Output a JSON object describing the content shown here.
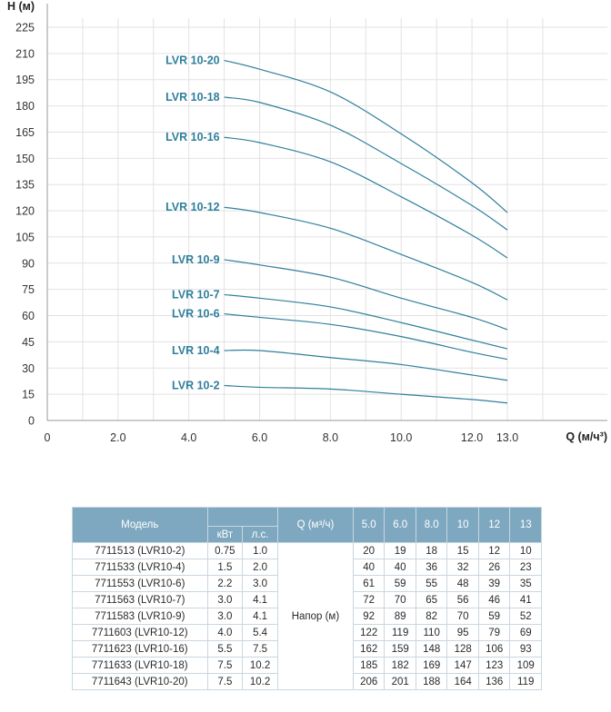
{
  "chart_data": {
    "type": "line",
    "xlabel": "Q (м/ч³)",
    "ylabel": "H (м)",
    "xlim": [
      0,
      13.0
    ],
    "ylim": [
      0,
      225
    ],
    "x_ticks": [
      "0",
      "2.0",
      "4.0",
      "6.0",
      "8.0",
      "10.0",
      "12.0",
      "13.0"
    ],
    "x_tick_values": [
      0,
      2,
      4,
      6,
      8,
      10,
      12,
      13
    ],
    "y_ticks": [
      "0",
      "15",
      "30",
      "45",
      "60",
      "75",
      "90",
      "105",
      "120",
      "135",
      "150",
      "165",
      "180",
      "195",
      "210",
      "225"
    ],
    "y_tick_values": [
      0,
      15,
      30,
      45,
      60,
      75,
      90,
      105,
      120,
      135,
      150,
      165,
      180,
      195,
      210,
      225
    ],
    "grid": true,
    "x": [
      5,
      6,
      8,
      10,
      12,
      13
    ],
    "series": [
      {
        "name": "LVR 10-2",
        "values": [
          20,
          19,
          18,
          15,
          12,
          10
        ]
      },
      {
        "name": "LVR 10-4",
        "values": [
          40,
          40,
          36,
          32,
          26,
          23
        ]
      },
      {
        "name": "LVR 10-6",
        "values": [
          61,
          59,
          55,
          48,
          39,
          35
        ]
      },
      {
        "name": "LVR 10-7",
        "values": [
          72,
          70,
          65,
          56,
          46,
          41
        ]
      },
      {
        "name": "LVR 10-9",
        "values": [
          92,
          89,
          82,
          70,
          59,
          52
        ]
      },
      {
        "name": "LVR 10-12",
        "values": [
          122,
          119,
          110,
          95,
          79,
          69
        ]
      },
      {
        "name": "LVR 10-16",
        "values": [
          162,
          159,
          148,
          128,
          106,
          93
        ]
      },
      {
        "name": "LVR 10-18",
        "values": [
          185,
          182,
          169,
          147,
          123,
          109
        ]
      },
      {
        "name": "LVR 10-20",
        "values": [
          206,
          201,
          188,
          164,
          136,
          119
        ]
      }
    ],
    "line_color": "#2f7f9c",
    "grid_color": "#e2e2e2"
  },
  "table": {
    "headers": {
      "model": "Модель",
      "power_group": "",
      "kw": "кВт",
      "hp": "л.с.",
      "q": "Q (м³/ч)",
      "flows": [
        "5.0",
        "6.0",
        "8.0",
        "10",
        "12",
        "13"
      ]
    },
    "napor_label": "Напор (м)",
    "rows": [
      {
        "model": "7711513 (LVR10-2)",
        "kw": "0.75",
        "hp": "1.0",
        "h": [
          "20",
          "19",
          "18",
          "15",
          "12",
          "10"
        ]
      },
      {
        "model": "7711533 (LVR10-4)",
        "kw": "1.5",
        "hp": "2.0",
        "h": [
          "40",
          "40",
          "36",
          "32",
          "26",
          "23"
        ]
      },
      {
        "model": "7711553 (LVR10-6)",
        "kw": "2.2",
        "hp": "3.0",
        "h": [
          "61",
          "59",
          "55",
          "48",
          "39",
          "35"
        ]
      },
      {
        "model": "7711563 (LVR10-7)",
        "kw": "3.0",
        "hp": "4.1",
        "h": [
          "72",
          "70",
          "65",
          "56",
          "46",
          "41"
        ]
      },
      {
        "model": "7711583 (LVR10-9)",
        "kw": "3.0",
        "hp": "4.1",
        "h": [
          "92",
          "89",
          "82",
          "70",
          "59",
          "52"
        ]
      },
      {
        "model": "7711603 (LVR10-12)",
        "kw": "4.0",
        "hp": "5.4",
        "h": [
          "122",
          "119",
          "110",
          "95",
          "79",
          "69"
        ]
      },
      {
        "model": "7711623 (LVR10-16)",
        "kw": "5.5",
        "hp": "7.5",
        "h": [
          "162",
          "159",
          "148",
          "128",
          "106",
          "93"
        ]
      },
      {
        "model": "7711633 (LVR10-18)",
        "kw": "7.5",
        "hp": "10.2",
        "h": [
          "185",
          "182",
          "169",
          "147",
          "123",
          "109"
        ]
      },
      {
        "model": "7711643 (LVR10-20)",
        "kw": "7.5",
        "hp": "10.2",
        "h": [
          "206",
          "201",
          "188",
          "164",
          "136",
          "119"
        ]
      }
    ],
    "header_color": "#7ea8c0"
  }
}
